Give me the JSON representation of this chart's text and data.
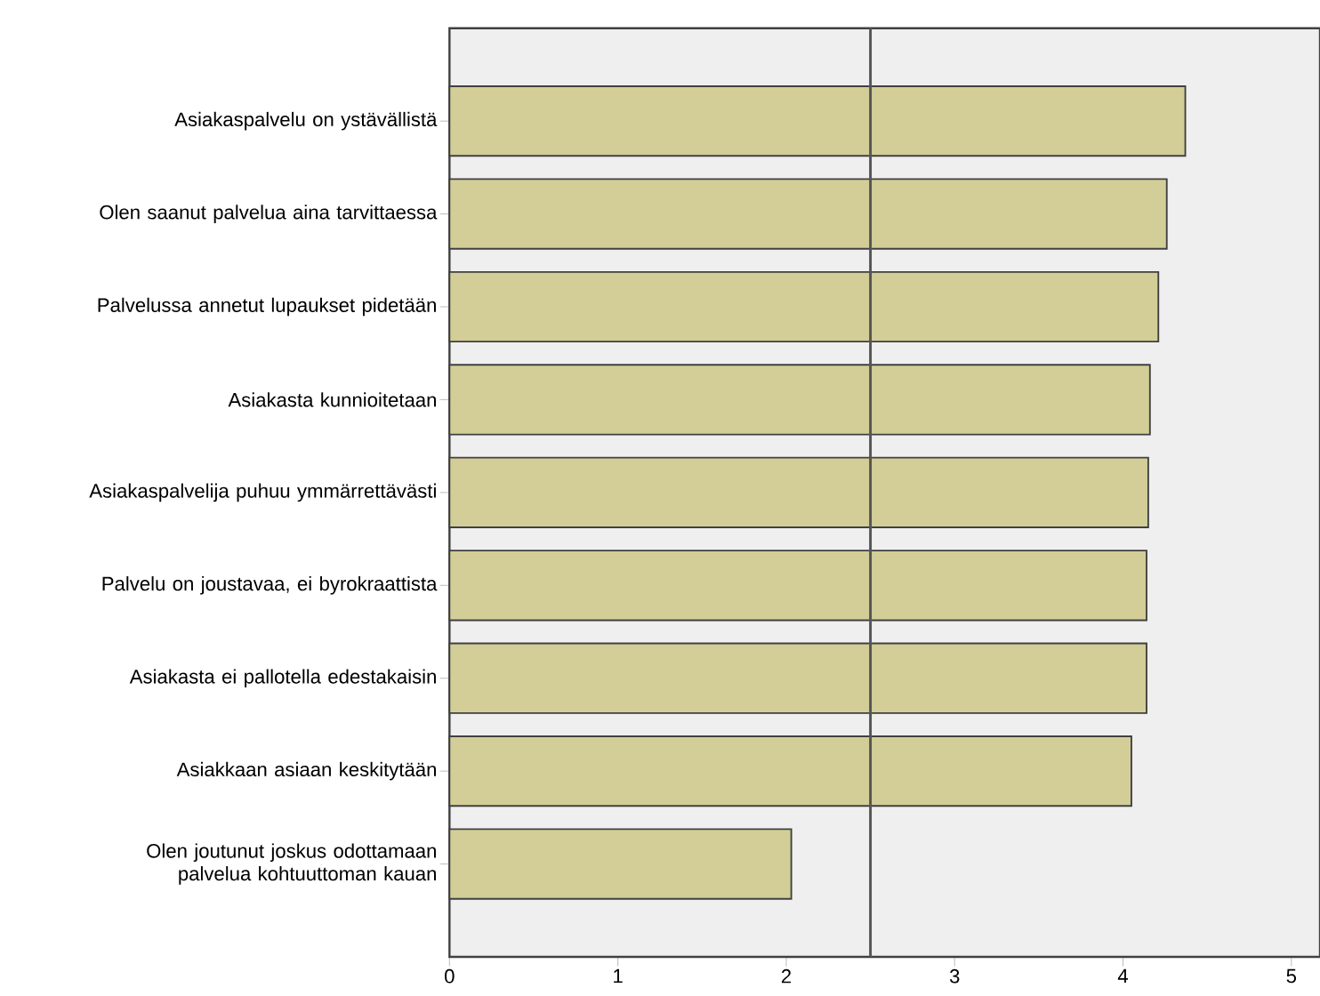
{
  "chart_data": {
    "type": "bar",
    "orientation": "horizontal",
    "categories": [
      "Asiakaspalvelu on ystävällistä",
      "Olen saanut palvelua aina tarvittaessa",
      "Palvelussa annetut lupaukset pidetään",
      "Asiakasta kunnioitetaan",
      "Asiakaspalvelija puhuu ymmärrettävästi",
      "Palvelu on joustavaa, ei byrokraattista",
      "Asiakasta ei pallotella edestakaisin",
      "Asiakkaan asiaan keskitytään",
      "Olen joutunut joskus odottamaan palvelua kohtuuttoman kauan"
    ],
    "values": [
      4.37,
      4.26,
      4.21,
      4.16,
      4.15,
      4.14,
      4.14,
      4.05,
      2.03
    ],
    "color": "#d3ce97",
    "xlim": [
      0,
      5.17
    ],
    "xticks": [
      0,
      1,
      2,
      3,
      4,
      5
    ],
    "ref_lines": [
      {
        "axis": "x",
        "value": 2.5,
        "color": "#555555"
      }
    ],
    "grid": false
  }
}
